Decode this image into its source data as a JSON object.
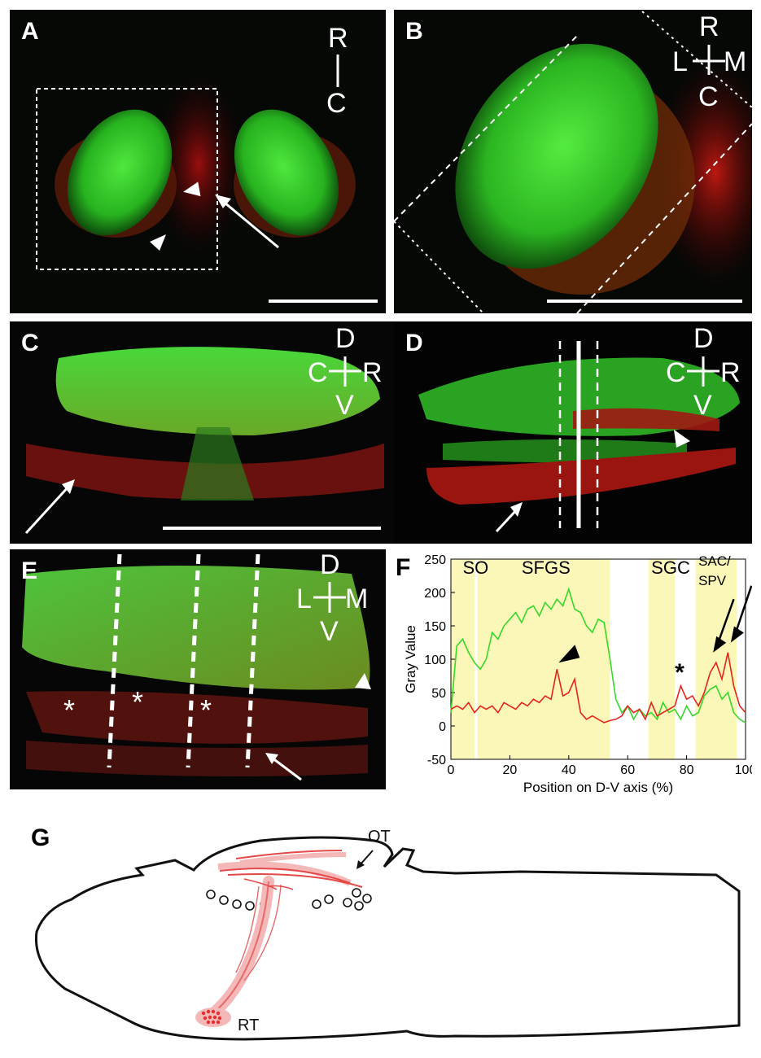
{
  "panels": {
    "A": {
      "label": "A",
      "orientation": {
        "top": "R",
        "bottom": "C"
      }
    },
    "B": {
      "label": "B",
      "orientation": {
        "top": "R",
        "left": "L",
        "right": "M",
        "bottom": "C"
      }
    },
    "C": {
      "label": "C",
      "orientation": {
        "top": "D",
        "left": "C",
        "right": "R",
        "bottom": "V"
      }
    },
    "D": {
      "label": "D",
      "orientation": {
        "top": "D",
        "left": "C",
        "right": "R",
        "bottom": "V"
      }
    },
    "E": {
      "label": "E",
      "orientation": {
        "top": "D",
        "left": "L",
        "right": "M",
        "bottom": "V"
      },
      "asterisk": "*"
    },
    "F": {
      "label": "F"
    },
    "G": {
      "label": "G",
      "ot_label": "OT",
      "rt_label": "RT"
    }
  },
  "colors": {
    "green": "#35d82a",
    "red": "#e8231c",
    "highlight": "#fbf7b8",
    "tract": "#f4a0a0"
  },
  "chart_data": {
    "type": "line",
    "xlabel": "Position on D-V axis (%)",
    "ylabel": "Gray Value",
    "xlim": [
      0,
      100
    ],
    "ylim": [
      -50,
      250
    ],
    "xticks": [
      "0",
      "20",
      "40",
      "60",
      "80",
      "100"
    ],
    "yticks": [
      "250",
      "200",
      "150",
      "100",
      "50",
      "0",
      "-50"
    ],
    "layers": [
      {
        "label": "SO",
        "x_range": [
          0,
          8
        ]
      },
      {
        "label": "SFGS",
        "x_range": [
          9,
          54
        ]
      },
      {
        "label": "SGC",
        "x_range": [
          67,
          76
        ]
      },
      {
        "label": "SAC/ SPV",
        "x_range": [
          83,
          97
        ]
      }
    ],
    "annotation_asterisk": "*",
    "series": [
      {
        "color": "#35d82a",
        "x": [
          0,
          2,
          4,
          6,
          8,
          10,
          12,
          14,
          16,
          18,
          20,
          22,
          24,
          26,
          28,
          30,
          32,
          34,
          36,
          38,
          40,
          42,
          44,
          46,
          48,
          50,
          52,
          54,
          56,
          58,
          60,
          62,
          64,
          66,
          68,
          70,
          72,
          74,
          76,
          78,
          80,
          82,
          84,
          86,
          88,
          90,
          92,
          94,
          96,
          98,
          100
        ],
        "y": [
          20,
          120,
          130,
          110,
          95,
          85,
          100,
          140,
          130,
          150,
          160,
          170,
          155,
          175,
          180,
          165,
          185,
          175,
          190,
          180,
          205,
          175,
          170,
          150,
          140,
          160,
          155,
          100,
          40,
          20,
          30,
          10,
          25,
          15,
          20,
          10,
          35,
          20,
          25,
          10,
          30,
          15,
          20,
          45,
          55,
          60,
          40,
          50,
          20,
          10,
          5
        ]
      },
      {
        "color": "#e8231c",
        "x": [
          0,
          2,
          4,
          6,
          8,
          10,
          12,
          14,
          16,
          18,
          20,
          22,
          24,
          26,
          28,
          30,
          32,
          34,
          36,
          38,
          40,
          42,
          44,
          46,
          48,
          50,
          52,
          54,
          56,
          58,
          60,
          62,
          64,
          66,
          68,
          70,
          72,
          74,
          76,
          78,
          80,
          82,
          84,
          86,
          88,
          90,
          92,
          94,
          96,
          98,
          100
        ],
        "y": [
          25,
          30,
          25,
          35,
          20,
          30,
          25,
          30,
          20,
          35,
          30,
          25,
          35,
          30,
          40,
          35,
          45,
          40,
          85,
          45,
          50,
          70,
          20,
          10,
          15,
          10,
          5,
          8,
          10,
          15,
          30,
          20,
          25,
          10,
          35,
          15,
          20,
          25,
          30,
          60,
          40,
          45,
          30,
          50,
          80,
          95,
          70,
          110,
          60,
          30,
          20
        ]
      }
    ]
  }
}
